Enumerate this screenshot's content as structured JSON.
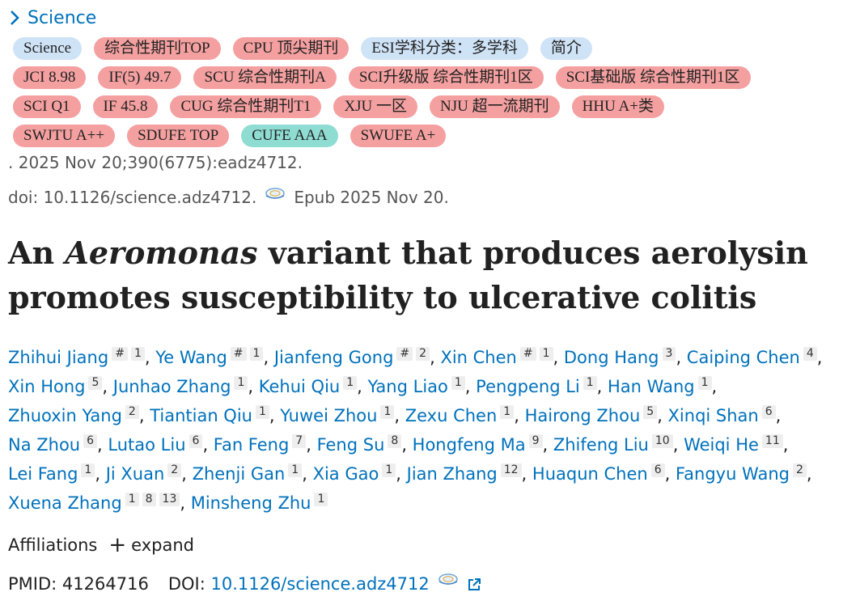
{
  "journal": {
    "name": "Science"
  },
  "tag_colors": {
    "blue": "#cfe3f7",
    "red": "#f5a0a0",
    "teal": "#8fdcd2"
  },
  "tags": {
    "row1": [
      {
        "label": "Science",
        "color": "blue"
      },
      {
        "label": "综合性期刊TOP",
        "color": "red"
      },
      {
        "label": "CPU 顶尖期刊",
        "color": "red"
      },
      {
        "label": "ESI学科分类：多学科",
        "color": "blue"
      },
      {
        "label": "简介",
        "color": "blue"
      }
    ],
    "row2": [
      {
        "label": "JCI 8.98",
        "color": "red"
      },
      {
        "label": "IF(5) 49.7",
        "color": "red"
      },
      {
        "label": "SCU 综合性期刊A",
        "color": "red"
      },
      {
        "label": "SCI升级版 综合性期刊1区",
        "color": "red"
      },
      {
        "label": "SCI基础版 综合性期刊1区",
        "color": "red"
      }
    ],
    "row3": [
      {
        "label": "SCI Q1",
        "color": "red"
      },
      {
        "label": "IF 45.8",
        "color": "red"
      },
      {
        "label": "CUG 综合性期刊T1",
        "color": "red"
      },
      {
        "label": "XJU 一区",
        "color": "red"
      },
      {
        "label": "NJU 超一流期刊",
        "color": "red"
      },
      {
        "label": "HHU A+类",
        "color": "red"
      }
    ],
    "row4": [
      {
        "label": "SWJTU A++",
        "color": "red"
      },
      {
        "label": "SDUFE TOP",
        "color": "red"
      },
      {
        "label": "CUFE AAA",
        "color": "teal"
      },
      {
        "label": "SWUFE A+",
        "color": "red"
      }
    ]
  },
  "citation": ". 2025 Nov 20;390(6775):eadz4712.",
  "doi_line": {
    "doi": "doi: 10.1126/science.adz4712.",
    "epub": "Epub 2025 Nov 20."
  },
  "title": {
    "part1": "An ",
    "italic": "Aeromonas",
    "part2": " variant that produces aerolysin promotes susceptibility to ulcerative colitis"
  },
  "authors": [
    {
      "name": "Zhihui Jiang",
      "sups": [
        "#",
        "1"
      ]
    },
    {
      "name": "Ye Wang",
      "sups": [
        "#",
        "1"
      ]
    },
    {
      "name": "Jianfeng Gong",
      "sups": [
        "#",
        "2"
      ]
    },
    {
      "name": "Xin Chen",
      "sups": [
        "#",
        "1"
      ]
    },
    {
      "name": "Dong Hang",
      "sups": [
        "3"
      ]
    },
    {
      "name": "Caiping Chen",
      "sups": [
        "4"
      ]
    },
    {
      "name": "Xin Hong",
      "sups": [
        "5"
      ]
    },
    {
      "name": "Junhao Zhang",
      "sups": [
        "1"
      ]
    },
    {
      "name": "Kehui Qiu",
      "sups": [
        "1"
      ]
    },
    {
      "name": "Yang Liao",
      "sups": [
        "1"
      ]
    },
    {
      "name": "Pengpeng Li",
      "sups": [
        "1"
      ]
    },
    {
      "name": "Han Wang",
      "sups": [
        "1"
      ]
    },
    {
      "name": "Zhuoxin Yang",
      "sups": [
        "2"
      ]
    },
    {
      "name": "Tiantian Qiu",
      "sups": [
        "1"
      ]
    },
    {
      "name": "Yuwei Zhou",
      "sups": [
        "1"
      ]
    },
    {
      "name": "Zexu Chen",
      "sups": [
        "1"
      ]
    },
    {
      "name": "Hairong Zhou",
      "sups": [
        "5"
      ]
    },
    {
      "name": "Xinqi Shan",
      "sups": [
        "6"
      ]
    },
    {
      "name": "Na Zhou",
      "sups": [
        "6"
      ]
    },
    {
      "name": "Lutao Liu",
      "sups": [
        "6"
      ]
    },
    {
      "name": "Fan Feng",
      "sups": [
        "7"
      ]
    },
    {
      "name": "Feng Su",
      "sups": [
        "8"
      ]
    },
    {
      "name": "Hongfeng Ma",
      "sups": [
        "9"
      ]
    },
    {
      "name": "Zhifeng Liu",
      "sups": [
        "10"
      ]
    },
    {
      "name": "Weiqi He",
      "sups": [
        "11"
      ]
    },
    {
      "name": "Lei Fang",
      "sups": [
        "1"
      ]
    },
    {
      "name": "Ji Xuan",
      "sups": [
        "2"
      ]
    },
    {
      "name": "Zhenji Gan",
      "sups": [
        "1"
      ]
    },
    {
      "name": "Xia Gao",
      "sups": [
        "1"
      ]
    },
    {
      "name": "Jian Zhang",
      "sups": [
        "12"
      ]
    },
    {
      "name": "Huaqun Chen",
      "sups": [
        "6"
      ]
    },
    {
      "name": "Fangyu Wang",
      "sups": [
        "2"
      ]
    },
    {
      "name": "Xuena Zhang",
      "sups": [
        "1",
        "8",
        "13"
      ]
    },
    {
      "name": "Minsheng Zhu",
      "sups": [
        "1"
      ]
    }
  ],
  "affiliations": {
    "label": "Affiliations",
    "toggle": "expand"
  },
  "identifiers": {
    "pmid_label": "PMID:",
    "pmid": "41264716",
    "doi_label": "DOI:",
    "doi": "10.1126/science.adz4712"
  }
}
